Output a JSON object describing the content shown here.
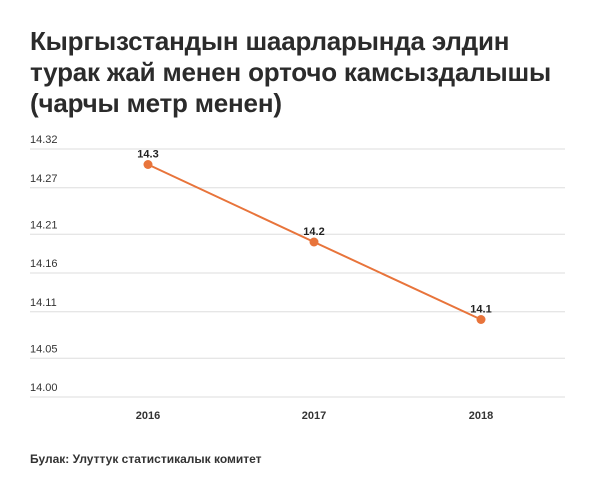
{
  "title_lines": [
    "Кыргызстандын шаарларында элдин",
    "турак жай менен орточо камсыздалышы",
    "(чарчы метр менен)"
  ],
  "source": "Булак: Улуттук статистикалык комитет",
  "colors": {
    "line": "#e8743b",
    "grid": "#dddddd",
    "text": "#333333"
  },
  "chart_data": {
    "type": "line",
    "title": "Кыргызстандын шаарларында элдин турак жай менен орточо камсыздалышы (чарчы метр менен)",
    "xlabel": "",
    "ylabel": "",
    "categories": [
      "2016",
      "2017",
      "2018"
    ],
    "series": [
      {
        "values": [
          14.3,
          14.2,
          14.1
        ],
        "labels": [
          "14.3",
          "14.2",
          "14.1"
        ]
      }
    ],
    "yticks": [
      "14.32",
      "14.27",
      "14.21",
      "14.16",
      "14.11",
      "14.05",
      "14.00"
    ],
    "ylim": [
      14.0,
      14.32
    ],
    "grid": true,
    "legend": "none"
  }
}
